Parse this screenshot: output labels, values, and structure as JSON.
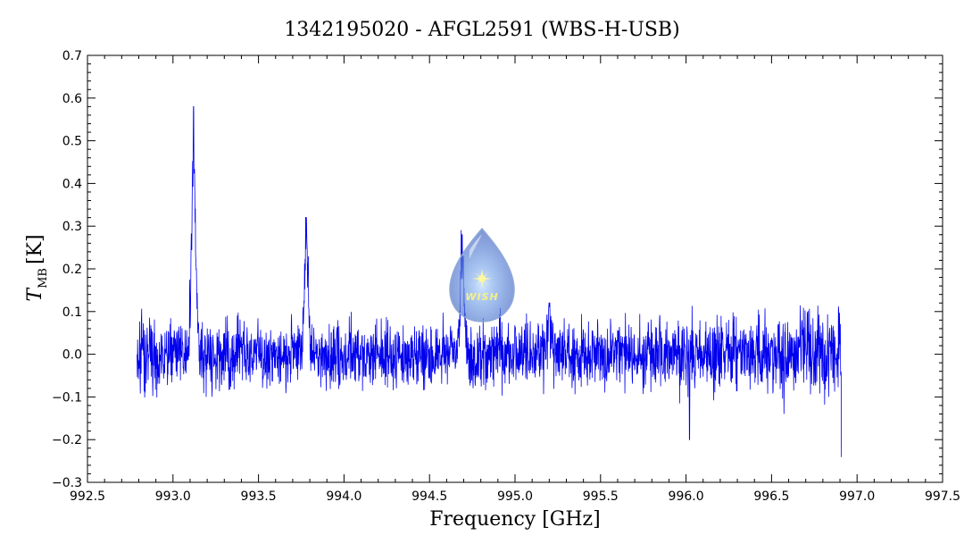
{
  "chart_data": {
    "type": "line",
    "title": "1342195020 - AFGL2591 (WBS-H-USB)",
    "xlabel": "Frequency [GHz]",
    "ylabel": {
      "main": "T",
      "subscript": "MB",
      "unit": "[K]"
    },
    "xlim": [
      992.5,
      997.5
    ],
    "ylim": [
      -0.3,
      0.7
    ],
    "x_ticks": [
      "992.5",
      "993.0",
      "993.5",
      "994.0",
      "994.5",
      "995.0",
      "995.5",
      "996.0",
      "996.5",
      "997.0",
      "997.5"
    ],
    "y_ticks": [
      "−0.3",
      "−0.2",
      "−0.1",
      "0.0",
      "0.1",
      "0.2",
      "0.3",
      "0.4",
      "0.5",
      "0.6",
      "0.7"
    ],
    "grid": false,
    "series": [
      {
        "color": "#0000ee",
        "x_range": [
          992.79,
          996.91
        ],
        "noise_rms": 0.055,
        "peaks": [
          {
            "x": 993.12,
            "y": 0.58
          },
          {
            "x": 993.78,
            "y": 0.32
          },
          {
            "x": 994.69,
            "y": 0.28
          },
          {
            "x": 995.2,
            "y": 0.12
          }
        ],
        "extremes": [
          {
            "x": 996.02,
            "y": -0.2
          },
          {
            "x": 996.91,
            "y": -0.24
          }
        ]
      }
    ]
  },
  "logo": {
    "text": "WISH"
  }
}
